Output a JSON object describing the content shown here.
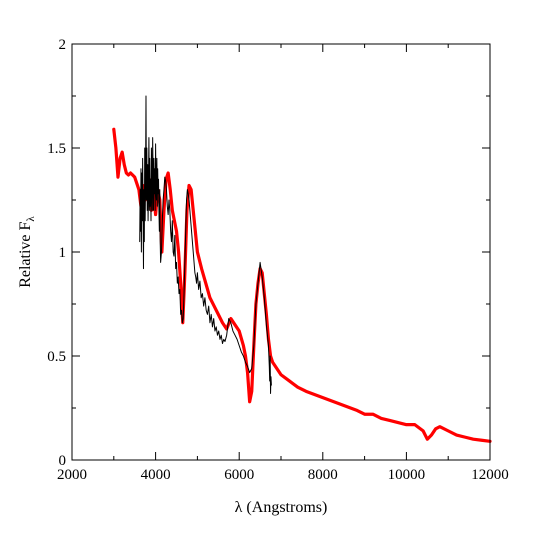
{
  "chart_data": {
    "type": "line",
    "title": "",
    "xlabel": "λ (Angstroms)",
    "ylabel_main": "Relative F",
    "ylabel_sub": "λ",
    "xlim": [
      2000,
      12000
    ],
    "ylim": [
      0,
      2
    ],
    "x_ticks": [
      2000,
      4000,
      6000,
      8000,
      10000,
      12000
    ],
    "x_tick_labels": [
      "2000",
      "4000",
      "6000",
      "8000",
      "10000",
      "12000"
    ],
    "y_ticks": [
      0,
      0.5,
      1,
      1.5,
      2
    ],
    "y_tick_labels": [
      "0",
      "0.5",
      "1",
      "1.5",
      "2"
    ],
    "grid": false,
    "legend": "none",
    "series": [
      {
        "color": "#ff0000",
        "style": "thick",
        "x": [
          3000,
          3050,
          3100,
          3150,
          3200,
          3250,
          3300,
          3350,
          3400,
          3450,
          3500,
          3550,
          3600,
          3650,
          3700,
          3750,
          3800,
          3850,
          3900,
          3950,
          4000,
          4050,
          4100,
          4150,
          4200,
          4250,
          4300,
          4350,
          4400,
          4450,
          4500,
          4550,
          4600,
          4650,
          4700,
          4750,
          4800,
          4850,
          4900,
          4950,
          5000,
          5100,
          5200,
          5300,
          5400,
          5500,
          5600,
          5700,
          5800,
          5900,
          6000,
          6100,
          6150,
          6200,
          6250,
          6300,
          6350,
          6400,
          6450,
          6500,
          6550,
          6600,
          6650,
          6700,
          6750,
          6800,
          6900,
          7000,
          7200,
          7400,
          7600,
          8000,
          8400,
          8800,
          9000,
          9200,
          9400,
          9600,
          9800,
          10000,
          10200,
          10400,
          10500,
          10600,
          10700,
          10800,
          11000,
          11200,
          11400,
          11600,
          11800,
          12000
        ],
        "y": [
          1.59,
          1.5,
          1.36,
          1.45,
          1.48,
          1.42,
          1.38,
          1.37,
          1.38,
          1.37,
          1.36,
          1.33,
          1.3,
          1.22,
          1.32,
          1.25,
          1.3,
          1.35,
          1.2,
          1.28,
          1.18,
          1.3,
          1.25,
          1.0,
          1.2,
          1.35,
          1.38,
          1.3,
          1.2,
          1.15,
          1.1,
          1.0,
          0.85,
          0.66,
          0.9,
          1.2,
          1.32,
          1.3,
          1.2,
          1.1,
          1.0,
          0.92,
          0.85,
          0.78,
          0.74,
          0.7,
          0.66,
          0.63,
          0.68,
          0.65,
          0.62,
          0.55,
          0.5,
          0.42,
          0.28,
          0.33,
          0.55,
          0.75,
          0.85,
          0.92,
          0.9,
          0.8,
          0.7,
          0.58,
          0.5,
          0.47,
          0.44,
          0.41,
          0.38,
          0.35,
          0.33,
          0.3,
          0.27,
          0.24,
          0.22,
          0.22,
          0.2,
          0.19,
          0.18,
          0.17,
          0.17,
          0.14,
          0.1,
          0.12,
          0.15,
          0.16,
          0.14,
          0.12,
          0.11,
          0.1,
          0.095,
          0.09
        ]
      },
      {
        "color": "#000000",
        "style": "thin",
        "x": [
          3620,
          3630,
          3640,
          3650,
          3660,
          3670,
          3680,
          3690,
          3700,
          3710,
          3720,
          3730,
          3740,
          3750,
          3760,
          3770,
          3780,
          3790,
          3800,
          3810,
          3820,
          3830,
          3840,
          3850,
          3860,
          3870,
          3880,
          3890,
          3900,
          3910,
          3920,
          3930,
          3940,
          3950,
          3960,
          3970,
          3980,
          3990,
          4000,
          4010,
          4020,
          4030,
          4040,
          4050,
          4060,
          4070,
          4080,
          4090,
          4100,
          4110,
          4120,
          4140,
          4160,
          4180,
          4200,
          4220,
          4240,
          4260,
          4280,
          4300,
          4320,
          4340,
          4360,
          4380,
          4400,
          4420,
          4440,
          4460,
          4480,
          4500,
          4520,
          4540,
          4560,
          4580,
          4600,
          4620,
          4640,
          4660,
          4680,
          4700,
          4720,
          4740,
          4760,
          4780,
          4800,
          4820,
          4840,
          4860,
          4880,
          4900,
          4920,
          4940,
          4960,
          4980,
          5000,
          5030,
          5060,
          5090,
          5120,
          5150,
          5180,
          5210,
          5240,
          5270,
          5300,
          5330,
          5360,
          5390,
          5420,
          5450,
          5480,
          5510,
          5540,
          5570,
          5600,
          5630,
          5660,
          5700,
          5750,
          5800,
          5850,
          5900,
          5950,
          6000,
          6050,
          6100,
          6150,
          6200,
          6250,
          6300,
          6350,
          6400,
          6450,
          6500,
          6550,
          6600,
          6650,
          6700,
          6720,
          6730,
          6740,
          6750,
          6760,
          6770
        ],
        "y": [
          1.05,
          1.3,
          1.1,
          1.4,
          1.0,
          1.38,
          1.15,
          1.45,
          1.2,
          0.92,
          1.3,
          1.05,
          1.5,
          1.15,
          1.35,
          1.75,
          1.25,
          1.5,
          1.2,
          1.42,
          1.15,
          1.32,
          1.55,
          1.2,
          1.45,
          1.22,
          1.35,
          1.15,
          1.5,
          1.3,
          1.2,
          1.55,
          1.35,
          1.2,
          1.45,
          1.28,
          1.4,
          1.2,
          1.52,
          1.3,
          1.25,
          1.45,
          1.22,
          1.4,
          1.28,
          1.35,
          1.2,
          1.1,
          1.3,
          1.05,
          0.95,
          1.0,
          1.15,
          1.25,
          1.3,
          1.36,
          1.34,
          1.3,
          1.22,
          1.18,
          1.25,
          1.2,
          1.1,
          1.05,
          1.15,
          1.0,
          0.98,
          1.08,
          0.92,
          0.95,
          0.85,
          0.88,
          0.8,
          0.82,
          0.7,
          0.72,
          0.66,
          0.68,
          0.8,
          0.95,
          1.1,
          1.25,
          1.3,
          1.28,
          1.25,
          1.2,
          1.15,
          1.1,
          1.05,
          1.0,
          0.95,
          0.9,
          0.88,
          0.85,
          0.9,
          0.82,
          0.86,
          0.78,
          0.8,
          0.74,
          0.78,
          0.72,
          0.7,
          0.74,
          0.66,
          0.7,
          0.64,
          0.68,
          0.62,
          0.64,
          0.6,
          0.62,
          0.58,
          0.6,
          0.56,
          0.58,
          0.57,
          0.6,
          0.68,
          0.66,
          0.62,
          0.6,
          0.58,
          0.55,
          0.52,
          0.5,
          0.47,
          0.45,
          0.42,
          0.44,
          0.55,
          0.75,
          0.85,
          0.95,
          0.88,
          0.78,
          0.65,
          0.55,
          0.45,
          0.38,
          0.5,
          0.32,
          0.4,
          0.36
        ]
      }
    ]
  }
}
